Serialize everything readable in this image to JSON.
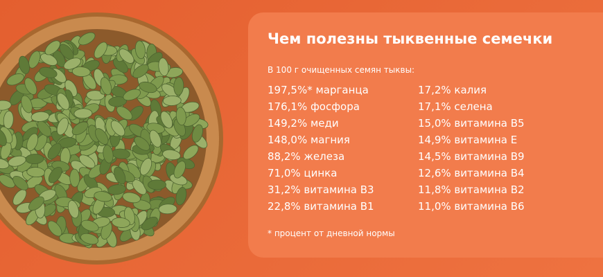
{
  "title": "Чем полезны тыквенные семечки",
  "subtitle": "В 100 г очищенных семян тыквы:",
  "columns": [
    [
      "197,5%* марганца",
      "176,1% фосфора",
      "149,2% меди",
      "148,0% магния",
      "88,2% железа",
      "71,0% цинка",
      "31,2% витамина B3",
      "22,8% витамина B1"
    ],
    [
      "17,2% калия",
      "17,1% селена",
      "15,0% витамина B5",
      "14,9% витамина E",
      "14,5% витамина B9",
      "12,6% витамина B4",
      "11,8% витамина B2",
      "11,0% витамина B6"
    ]
  ],
  "footnote": "* процент от дневной нормы"
}
